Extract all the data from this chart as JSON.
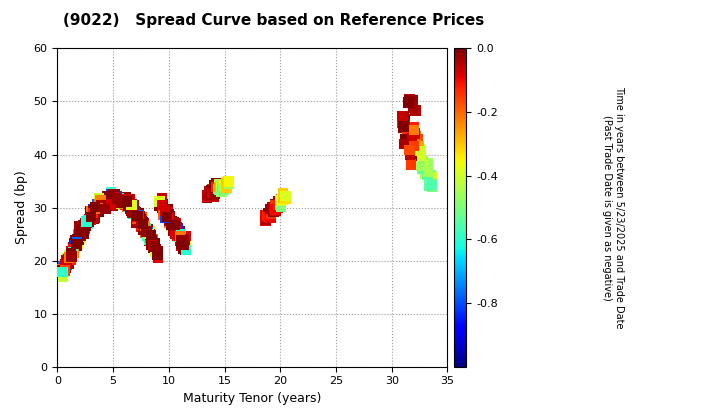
{
  "title": "(9022)   Spread Curve based on Reference Prices",
  "xlabel": "Maturity Tenor (years)",
  "ylabel": "Spread (bp)",
  "colorbar_label_line1": "Time in years between 5/23/2025 and Trade Date",
  "colorbar_label_line2": "(Past Trade Date is given as negative)",
  "xlim": [
    0,
    35
  ],
  "ylim": [
    0,
    60
  ],
  "xticks": [
    0,
    5,
    10,
    15,
    20,
    25,
    30,
    35
  ],
  "yticks": [
    0,
    10,
    20,
    30,
    40,
    50,
    60
  ],
  "cmap": "jet",
  "vmin": -1.0,
  "vmax": 0.0,
  "colorbar_ticks": [
    0.0,
    -0.2,
    -0.4,
    -0.6,
    -0.8
  ],
  "marker_size": 55,
  "marker": "s"
}
